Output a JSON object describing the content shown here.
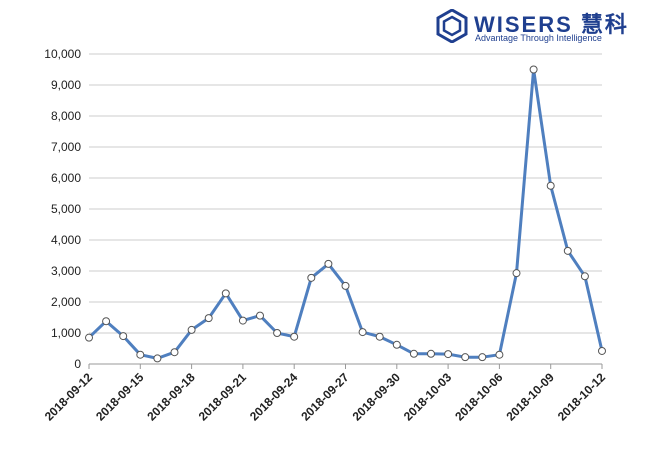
{
  "logo": {
    "name": "WISERS 慧科",
    "tagline": "Advantage Through Intelligence",
    "color": "#1f3f8f"
  },
  "chart_data": {
    "type": "line",
    "title": "",
    "xlabel": "",
    "ylabel": "",
    "ylim": [
      0,
      10000
    ],
    "yticks": [
      0,
      1000,
      2000,
      3000,
      4000,
      5000,
      6000,
      7000,
      8000,
      9000,
      10000
    ],
    "ytick_labels": [
      "0",
      "1,000",
      "2,000",
      "3,000",
      "4,000",
      "5,000",
      "6,000",
      "7,000",
      "8,000",
      "9,000",
      "10,000"
    ],
    "grid": true,
    "legend": "none",
    "line_color": "#4f7fbf",
    "x": [
      "2018-09-12",
      "2018-09-13",
      "2018-09-14",
      "2018-09-15",
      "2018-09-16",
      "2018-09-17",
      "2018-09-18",
      "2018-09-19",
      "2018-09-20",
      "2018-09-21",
      "2018-09-22",
      "2018-09-23",
      "2018-09-24",
      "2018-09-25",
      "2018-09-26",
      "2018-09-27",
      "2018-09-28",
      "2018-09-29",
      "2018-09-30",
      "2018-10-01",
      "2018-10-02",
      "2018-10-03",
      "2018-10-04",
      "2018-10-05",
      "2018-10-06",
      "2018-10-07",
      "2018-10-08",
      "2018-10-09",
      "2018-10-10",
      "2018-10-11",
      "2018-10-12"
    ],
    "xtick_labels": [
      "2018-09-12",
      "2018-09-15",
      "2018-09-18",
      "2018-09-21",
      "2018-09-24",
      "2018-09-27",
      "2018-09-30",
      "2018-10-03",
      "2018-10-06",
      "2018-10-09",
      "2018-10-12"
    ],
    "series": [
      {
        "values": [
          850,
          1380,
          900,
          300,
          180,
          380,
          1100,
          1480,
          2280,
          1400,
          1560,
          1000,
          880,
          2780,
          3230,
          2520,
          1030,
          880,
          620,
          330,
          330,
          320,
          220,
          220,
          300,
          2930,
          9500,
          5750,
          3650,
          2830,
          420
        ]
      }
    ]
  }
}
